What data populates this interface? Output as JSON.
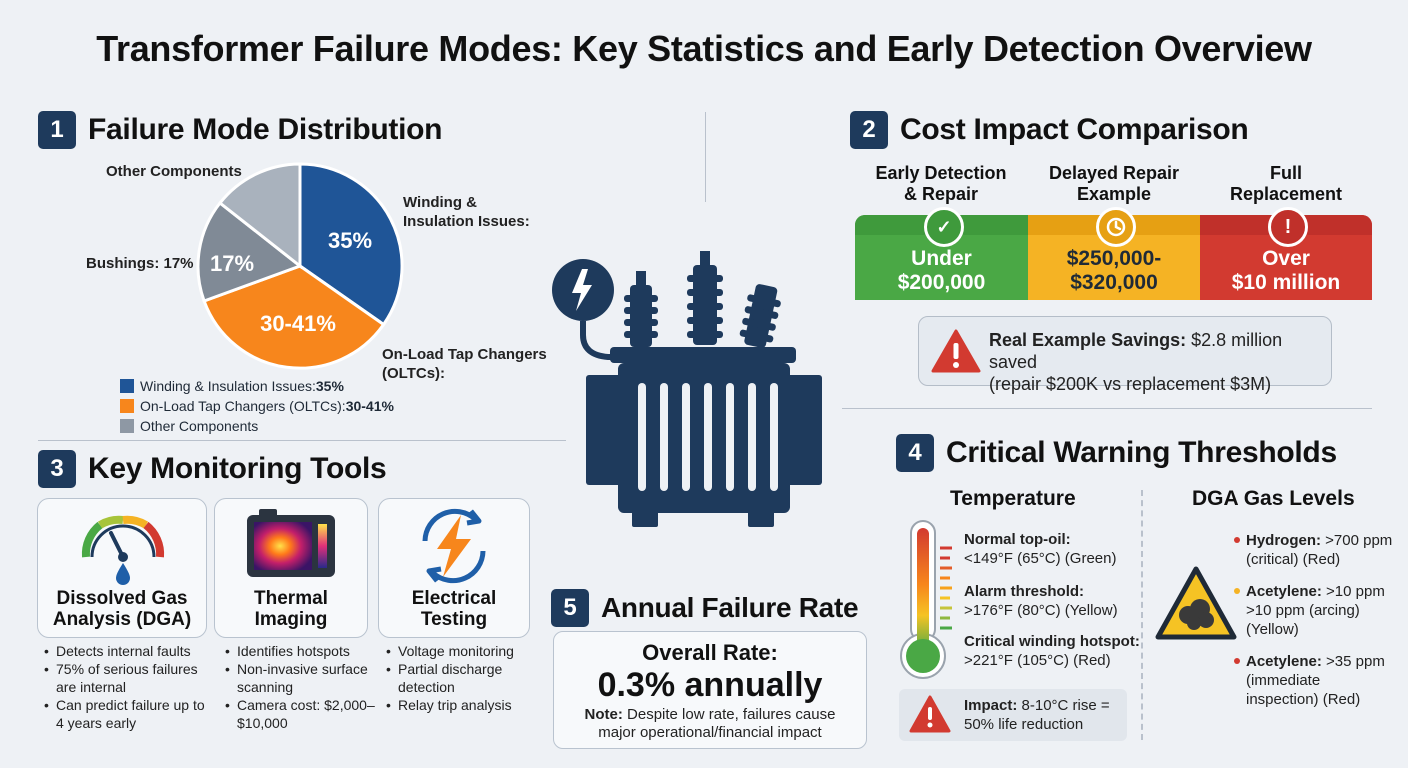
{
  "title": "Transformer Failure Modes: Key Statistics and Early Detection Overview",
  "sections": {
    "s1": {
      "num": "1",
      "title": "Failure Mode Distribution"
    },
    "s2": {
      "num": "2",
      "title": "Cost Impact Comparison"
    },
    "s3": {
      "num": "3",
      "title": "Key Monitoring Tools"
    },
    "s4": {
      "num": "4",
      "title": "Critical Warning Thresholds"
    },
    "s5": {
      "num": "5",
      "title": "Annual Failure Rate"
    }
  },
  "pie": {
    "label_other": "Other Components",
    "label_winding_1": "Winding &",
    "label_winding_2": "Insulation Issues:",
    "label_bushings": "Bushings: 17%",
    "label_oltc_1": "On-Load Tap Changers",
    "label_oltc_2": "(OLTCs):",
    "slice_winding": "35%",
    "slice_oltc": "30-41%",
    "slice_bushings": "17%",
    "colors": {
      "winding": "#1f5597",
      "oltc": "#f7861c",
      "bushings": "#808a96",
      "other": "#a9b2bd"
    }
  },
  "legend": [
    {
      "label": "Winding & Insulation Issues: ",
      "value": "35%",
      "color": "#1f5597"
    },
    {
      "label": "On-Load Tap Changers (OLTCs): ",
      "value": "30-41%",
      "color": "#f7861c"
    },
    {
      "label": "Other Components",
      "value": "",
      "color": "#8e98a4"
    }
  ],
  "tools": [
    {
      "name_1": "Dissolved Gas",
      "name_2": "Analysis (DGA)",
      "icon": "gauge-icon",
      "bullets": [
        "Detects internal faults",
        "75% of serious failures are internal",
        "Can predict failure up to 4 years early"
      ]
    },
    {
      "name_1": "Thermal",
      "name_2": "Imaging",
      "icon": "thermal-camera-icon",
      "bullets": [
        "Identifies hotspots",
        "Non-invasive surface scanning",
        "Camera cost: $2,000–$10,000"
      ]
    },
    {
      "name_1": "Electrical",
      "name_2": "Testing",
      "icon": "lightning-icon",
      "bullets": [
        "Voltage monitoring",
        "Partial discharge detection",
        "Relay trip analysis"
      ]
    }
  ],
  "costs": [
    {
      "hdr_1": "Early Detection",
      "hdr_2": "& Repair",
      "val_1": "Under",
      "val_2": "$200,000",
      "icon": "check-icon",
      "color": "#4aa845",
      "top": "#3f9a3c"
    },
    {
      "hdr_1": "Delayed Repair",
      "hdr_2": "Example",
      "val_1": "$250,000-",
      "val_2": "$320,000",
      "icon": "clock-icon",
      "color": "#f5b324",
      "top": "#e6a013"
    },
    {
      "hdr_1": "Full",
      "hdr_2": "Replacement",
      "val_1": "Over",
      "val_2": "$10 million",
      "icon": "warning-icon",
      "color": "#d23a30",
      "top": "#c0302a"
    }
  ],
  "savings": {
    "label": "Real Example Savings:",
    "text_1": " $2.8 million saved",
    "text_2": "(repair $200K vs replacement $3M)"
  },
  "temperature": {
    "heading": "Temperature",
    "items": [
      {
        "label": "Normal top-oil:",
        "value": "<149°F (65°C) (Green)"
      },
      {
        "label": "Alarm threshold:",
        "value": ">176°F (80°C) (Yellow)"
      },
      {
        "label": "Critical winding hotspot:",
        "value": ">221°F (105°C) (Red)"
      }
    ],
    "impact_label": "Impact:",
    "impact_1": " 8-10°C rise =",
    "impact_2": "50% life reduction"
  },
  "dga": {
    "heading": "DGA Gas Levels",
    "items": [
      {
        "label": "Hydrogen:",
        "lines": [
          " >700 ppm",
          "(critical) (Red)"
        ],
        "color": "#d23a30"
      },
      {
        "label": "Acetylene:",
        "lines": [
          " >10 ppm",
          ">10 ppm (arcing)",
          "(Yellow)"
        ],
        "color": "#f5b324"
      },
      {
        "label": "Acetylene:",
        "lines": [
          " >35 ppm",
          "(immediate",
          "inspection) (Red)"
        ],
        "color": "#d23a30"
      }
    ]
  },
  "rate": {
    "heading": "Overall Rate:",
    "value": "0.3% annually",
    "note_label": "Note:",
    "note_1": " Despite low rate, failures cause",
    "note_2": "major operational/financial impact"
  },
  "colors": {
    "navy": "#1e3a5c",
    "green": "#4aa845",
    "yellow": "#f5b324",
    "red": "#d23a30",
    "orange": "#f7861c"
  }
}
